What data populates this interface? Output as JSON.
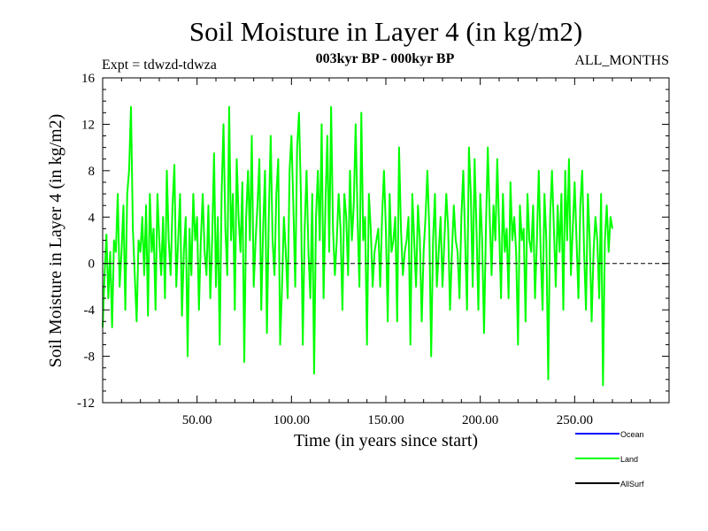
{
  "chart_data": {
    "type": "line",
    "title": "Soil Moisture in Layer 4 (in kg/m2)",
    "subtitle_left": "Expt = tdwzd-tdwza",
    "subtitle_center": "003kyr BP - 000kyr BP",
    "subtitle_right": "ALL_MONTHS",
    "xlabel": "Time (in years since start)",
    "ylabel": "Soil Moisture in Layer 4 (in kg/m2)",
    "xlim": [
      0,
      300
    ],
    "ylim": [
      -12,
      16
    ],
    "x_ticks": [
      {
        "value": 50,
        "label": "50.00"
      },
      {
        "value": 100,
        "label": "100.00"
      },
      {
        "value": 150,
        "label": "150.00"
      },
      {
        "value": 200,
        "label": "200.00"
      },
      {
        "value": 250,
        "label": "250.00"
      }
    ],
    "y_ticks": [
      {
        "value": 16,
        "label": "16"
      },
      {
        "value": 12,
        "label": "12"
      },
      {
        "value": 8,
        "label": "8"
      },
      {
        "value": 4,
        "label": "4"
      },
      {
        "value": 0,
        "label": "0"
      },
      {
        "value": -4,
        "label": "-4"
      },
      {
        "value": -8,
        "label": "-8"
      },
      {
        "value": -12,
        "label": "-12"
      }
    ],
    "zero_line": true,
    "legend": [
      {
        "name": "Ocean",
        "color": "#0000ff"
      },
      {
        "name": "Land",
        "color": "#00ff00"
      },
      {
        "name": "AllSurf",
        "color": "#000000"
      }
    ],
    "series": [
      {
        "name": "Land",
        "color": "#00ff00",
        "x_start": 0,
        "x_step": 1,
        "values": [
          -5.5,
          -1,
          2.5,
          -3,
          1,
          -5.5,
          2,
          1,
          6,
          -2,
          1,
          5,
          -4,
          6,
          8,
          13.5,
          3,
          -1,
          -5,
          2,
          1,
          4,
          -1,
          5,
          -4.5,
          6,
          1,
          3,
          -4,
          6,
          2,
          -1,
          4,
          -3,
          8,
          2,
          -1,
          5,
          8.5,
          -2,
          2,
          6,
          -4.5,
          1,
          4,
          -8,
          3,
          -1,
          6,
          2,
          4,
          -4,
          2,
          6,
          1,
          -1,
          5,
          -3,
          2,
          9.5,
          -2,
          4,
          -7,
          6,
          12,
          3,
          -1,
          13.5,
          2,
          6,
          -4,
          9,
          4,
          1,
          7,
          -8.5,
          4,
          8,
          2,
          11,
          -2,
          2,
          5,
          9,
          -4,
          3,
          8,
          -6,
          4,
          11,
          2,
          -1,
          6,
          9,
          -7,
          -2,
          4,
          1,
          -3,
          8,
          11,
          5,
          -2,
          10,
          13,
          6,
          -7,
          3,
          8,
          1,
          -3,
          6,
          -9.5,
          4,
          8,
          2,
          12,
          -3,
          5,
          11,
          1,
          13.5,
          3,
          -1,
          2,
          6,
          3,
          -4,
          6,
          4,
          -1,
          8,
          2,
          5,
          12,
          4,
          -2,
          13,
          2,
          4,
          -7,
          6,
          3,
          -2,
          1,
          2,
          3,
          -2,
          4,
          8,
          3,
          -5,
          6,
          1,
          2,
          4,
          -5,
          10,
          3,
          -1,
          1,
          2,
          4,
          -7,
          6,
          2,
          -2,
          5,
          2,
          -5,
          1,
          4,
          8,
          3,
          -8,
          2,
          6,
          -2,
          1,
          4,
          -2,
          2,
          6,
          3,
          -4,
          1,
          5,
          2,
          1,
          -3,
          4,
          8,
          2,
          -4,
          10,
          6,
          -2,
          9,
          3,
          -4,
          6,
          2,
          -6,
          3,
          10,
          4,
          -1,
          5,
          2,
          9,
          3,
          -3,
          6,
          1,
          3,
          -3,
          7,
          2,
          4,
          1,
          -7,
          5,
          2,
          3,
          -5,
          6,
          2,
          1,
          5,
          -3,
          2,
          8,
          1,
          -4,
          6,
          2,
          -10,
          4,
          8,
          3,
          -2,
          5,
          1,
          6,
          -4,
          8,
          2,
          9,
          -1,
          3,
          7,
          2,
          -3,
          5,
          8,
          1,
          -4,
          6,
          2,
          -5,
          1,
          4,
          2,
          -3,
          6,
          -10.5,
          2,
          5,
          1,
          4,
          3
        ]
      }
    ]
  }
}
